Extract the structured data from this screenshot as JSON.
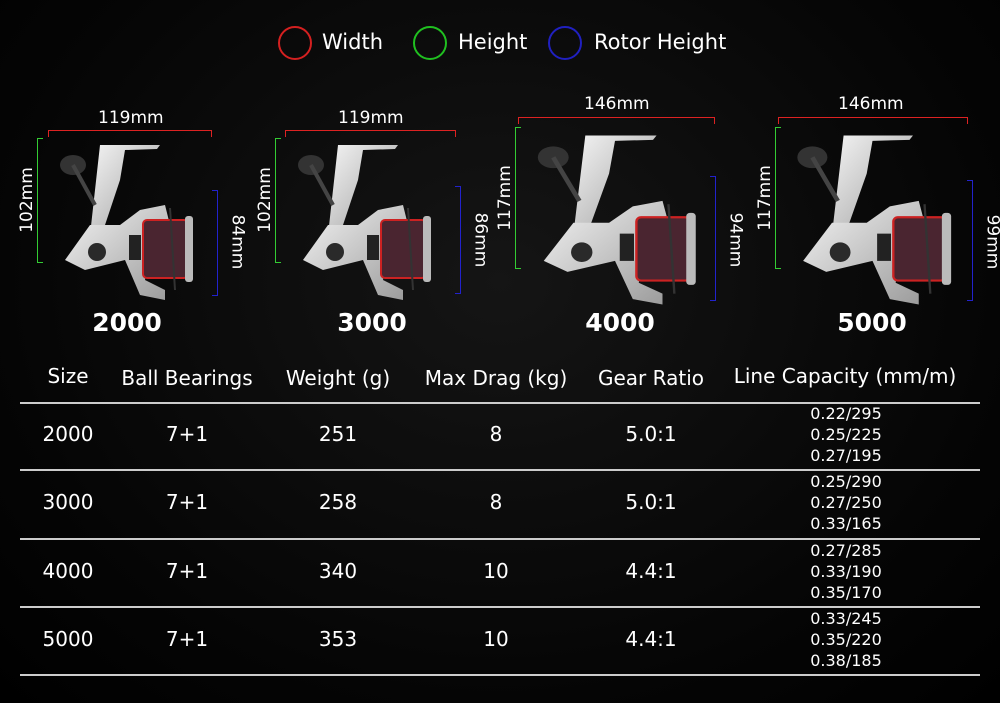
{
  "legend": [
    {
      "label": "Width",
      "color": "#d42020"
    },
    {
      "label": "Height",
      "color": "#20c020"
    },
    {
      "label": "Rotor Height",
      "color": "#2020c0"
    }
  ],
  "models": [
    {
      "size": "2000",
      "width": "119mm",
      "height": "102mm",
      "rotor_height": "84mm"
    },
    {
      "size": "3000",
      "width": "119mm",
      "height": "102mm",
      "rotor_height": "86mm"
    },
    {
      "size": "4000",
      "width": "146mm",
      "height": "117mm",
      "rotor_height": "94mm"
    },
    {
      "size": "5000",
      "width": "146mm",
      "height": "117mm",
      "rotor_height": "99mm"
    }
  ],
  "table": {
    "headers": [
      "Size",
      "Ball Bearings",
      "Weight (g)",
      "Max Drag (kg)",
      "Gear Ratio",
      "Line Capacity (mm/m)"
    ],
    "rows": [
      {
        "size": "2000",
        "bearings": "7+1",
        "weight": "251",
        "drag": "8",
        "gear": "5.0:1",
        "capacity": [
          "0.22/295",
          "0.25/225",
          "0.27/195"
        ]
      },
      {
        "size": "3000",
        "bearings": "7+1",
        "weight": "258",
        "drag": "8",
        "gear": "5.0:1",
        "capacity": [
          "0.25/290",
          "0.27/250",
          "0.33/165"
        ]
      },
      {
        "size": "4000",
        "bearings": "7+1",
        "weight": "340",
        "drag": "10",
        "gear": "4.4:1",
        "capacity": [
          "0.27/285",
          "0.33/190",
          "0.35/170"
        ]
      },
      {
        "size": "5000",
        "bearings": "7+1",
        "weight": "353",
        "drag": "10",
        "gear": "4.4:1",
        "capacity": [
          "0.33/245",
          "0.35/220",
          "0.38/185"
        ]
      }
    ]
  }
}
